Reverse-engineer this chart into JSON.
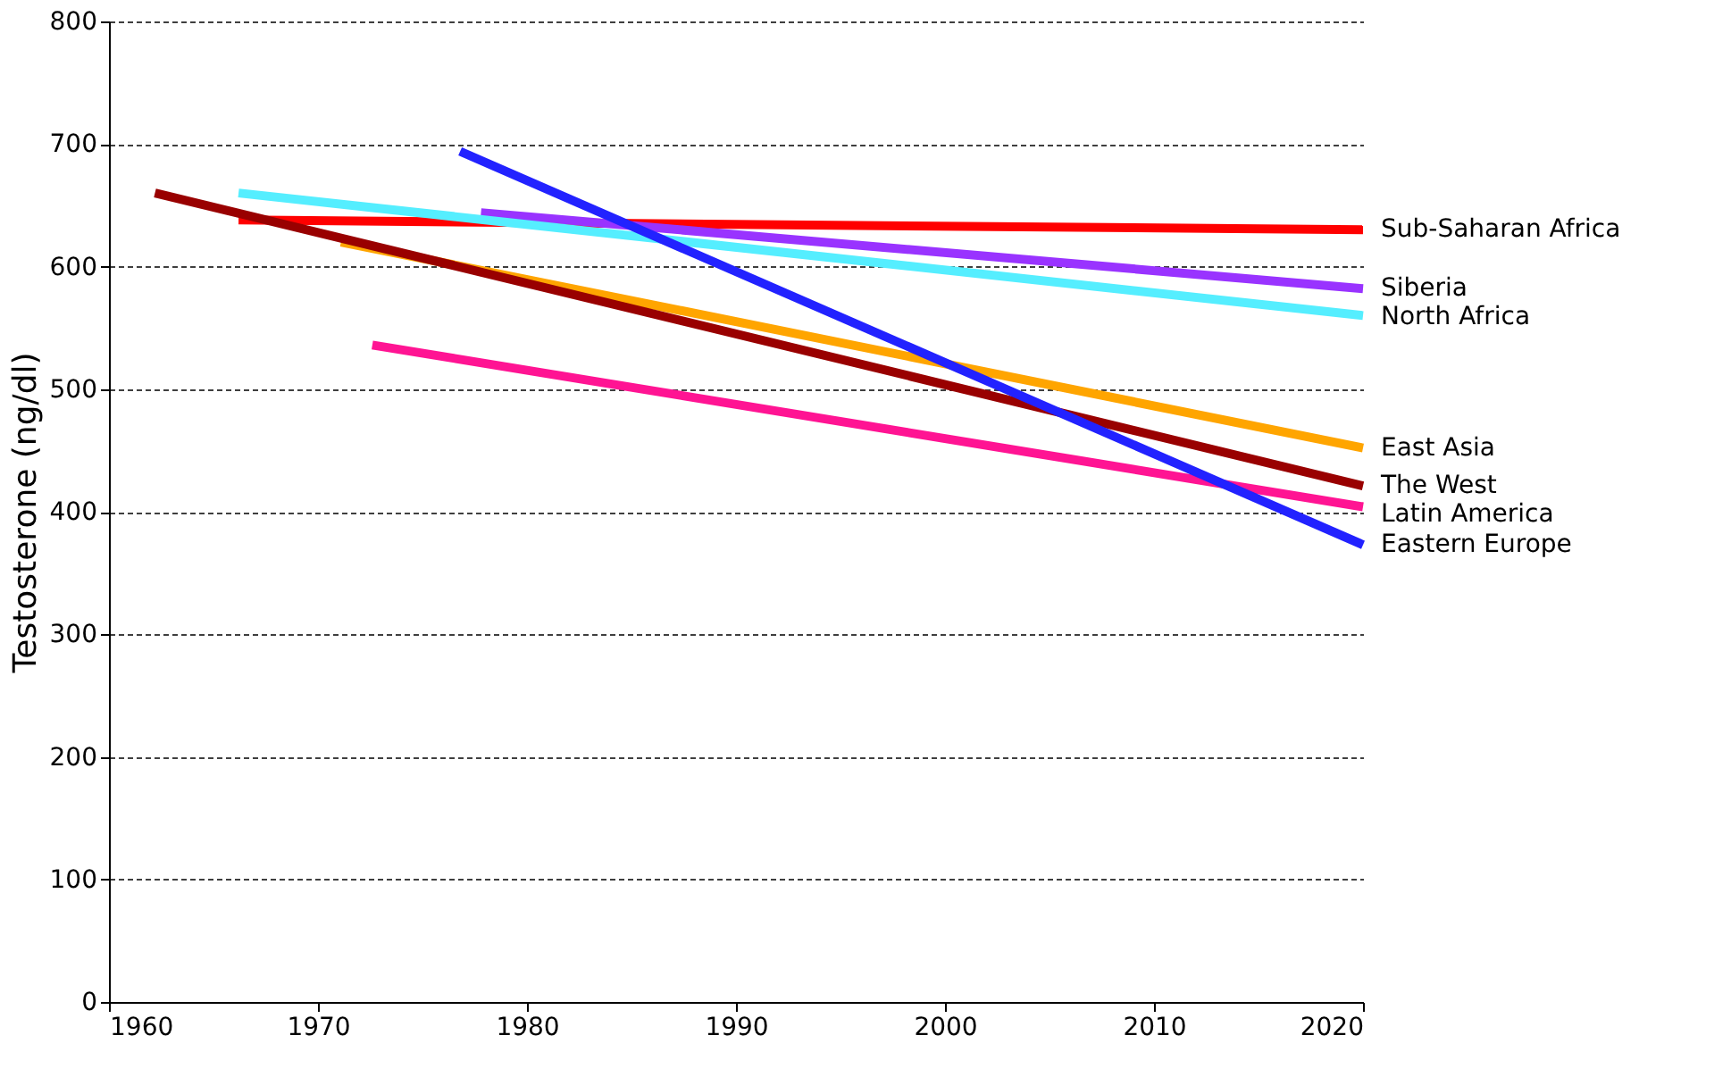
{
  "chart_data": {
    "type": "line",
    "ylabel": "Testosterone (ng/dl)",
    "xlim": [
      1960,
      2020
    ],
    "xticks": [
      1960,
      1970,
      1980,
      1990,
      2000,
      2010,
      2020
    ],
    "ylim": [
      0,
      800
    ],
    "yticks": [
      0,
      100,
      200,
      300,
      400,
      500,
      600,
      700,
      800
    ],
    "grid": "y",
    "marker": "none",
    "line_style": "solid",
    "legend": false,
    "series": [
      {
        "name": "Sub-Saharan Africa",
        "color": "#ff0000",
        "x": [
          1966.2,
          2020
        ],
        "values": [
          638,
          630
        ]
      },
      {
        "name": "Siberia",
        "color": "#9933ff",
        "x": [
          1977.8,
          2020
        ],
        "values": [
          644,
          582
        ]
      },
      {
        "name": "North Africa",
        "color": "#55eeff",
        "x": [
          1966.2,
          2020
        ],
        "values": [
          660,
          560
        ]
      },
      {
        "name": "East Asia",
        "color": "#ffa500",
        "x": [
          1971.1,
          2020
        ],
        "values": [
          620,
          452
        ]
      },
      {
        "name": "The West",
        "color": "#990000",
        "x": [
          1962.2,
          2020
        ],
        "values": [
          660,
          421
        ]
      },
      {
        "name": "Latin America",
        "color": "#ff1493",
        "x": [
          1972.6,
          2020
        ],
        "values": [
          536,
          404
        ]
      },
      {
        "name": "Eastern Europe",
        "color": "#2222ff",
        "x": [
          1976.8,
          2020
        ],
        "values": [
          694,
          373
        ]
      }
    ]
  }
}
